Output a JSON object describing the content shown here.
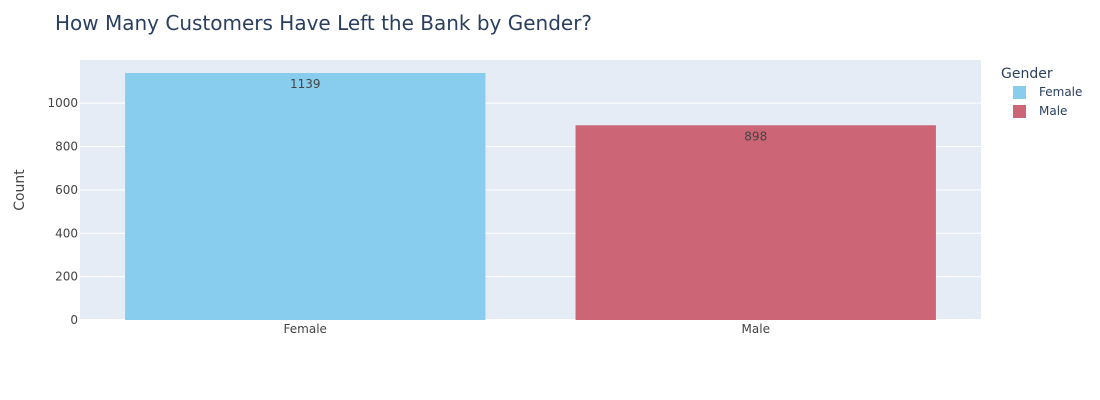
{
  "chart_data": {
    "type": "bar",
    "title": "How Many Customers Have Left the Bank by Gender?",
    "xlabel": "",
    "ylabel": "Count",
    "categories": [
      "Female",
      "Male"
    ],
    "series": [
      {
        "name": "Female",
        "category": "Female",
        "value": 1139,
        "color": "#89CDEE"
      },
      {
        "name": "Male",
        "category": "Male",
        "value": 898,
        "color": "#CC6677"
      }
    ],
    "ylim": [
      0,
      1198.95
    ],
    "yticks": [
      0,
      200,
      400,
      600,
      800,
      1000
    ],
    "ytick_labels": [
      "0",
      "200",
      "400",
      "600",
      "800",
      "1000"
    ],
    "grid": true,
    "legend": {
      "title": "Gender",
      "placement": "top-right"
    },
    "colors": {
      "plot_bg": "#E5ECF6",
      "grid": "#ffffff",
      "text": "#444444",
      "title": "#2a3f5f"
    }
  }
}
